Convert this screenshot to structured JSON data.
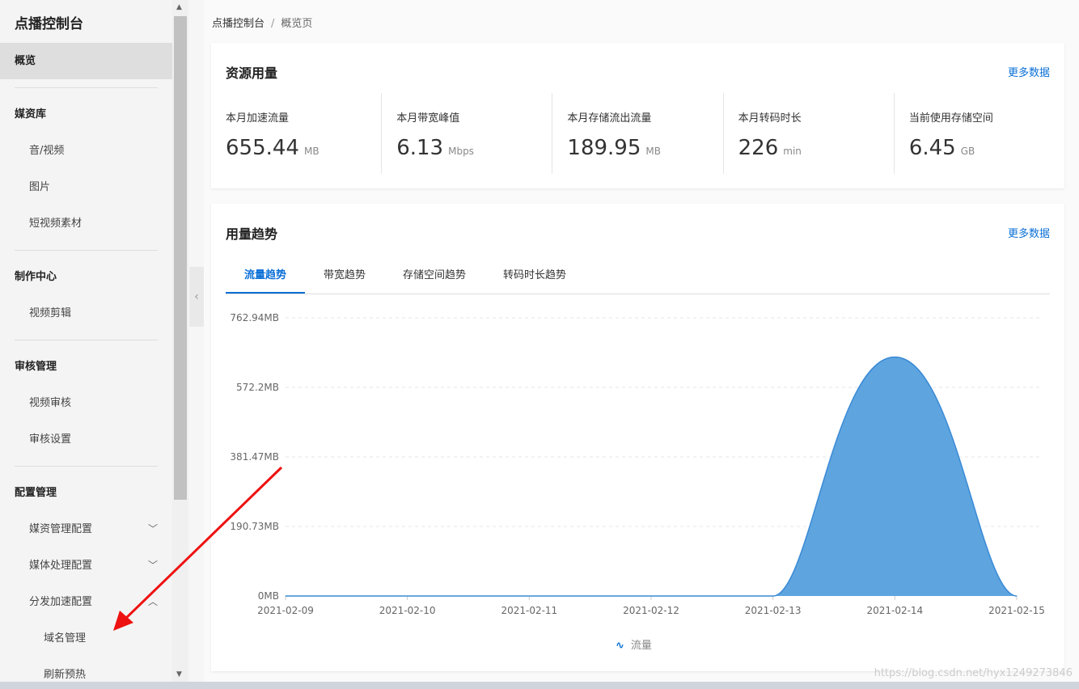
{
  "sidebar": {
    "title": "点播控制台",
    "items": [
      {
        "label": "概览",
        "level": 1,
        "active": true
      },
      {
        "divider": true
      },
      {
        "label": "媒资库",
        "level": 1
      },
      {
        "label": "音/视频",
        "level": 2
      },
      {
        "label": "图片",
        "level": 2
      },
      {
        "label": "短视频素材",
        "level": 2
      },
      {
        "divider": true
      },
      {
        "label": "制作中心",
        "level": 1
      },
      {
        "label": "视频剪辑",
        "level": 2
      },
      {
        "divider": true
      },
      {
        "label": "审核管理",
        "level": 1
      },
      {
        "label": "视频审核",
        "level": 2
      },
      {
        "label": "审核设置",
        "level": 2
      },
      {
        "divider": true
      },
      {
        "label": "配置管理",
        "level": 1
      },
      {
        "label": "媒资管理配置",
        "level": 2,
        "chevron": "chevron-down"
      },
      {
        "label": "媒体处理配置",
        "level": 2,
        "chevron": "chevron-down"
      },
      {
        "label": "分发加速配置",
        "level": 2,
        "chevron": "chevron-up"
      },
      {
        "label": "域名管理",
        "level": 3
      },
      {
        "label": "刷新预热",
        "level": 3
      }
    ]
  },
  "breadcrumb": {
    "root": "点播控制台",
    "sep": "/",
    "current": "概览页"
  },
  "usage": {
    "title": "资源用量",
    "more": "更多数据",
    "stats": [
      {
        "label": "本月加速流量",
        "value": "655.44",
        "unit": "MB"
      },
      {
        "label": "本月带宽峰值",
        "value": "6.13",
        "unit": "Mbps"
      },
      {
        "label": "本月存储流出流量",
        "value": "189.95",
        "unit": "MB"
      },
      {
        "label": "本月转码时长",
        "value": "226",
        "unit": "min"
      },
      {
        "label": "当前使用存储空间",
        "value": "6.45",
        "unit": "GB"
      }
    ]
  },
  "trend": {
    "title": "用量趋势",
    "more": "更多数据",
    "tabs": [
      "流量趋势",
      "带宽趋势",
      "存储空间趋势",
      "转码时长趋势"
    ],
    "active_tab": 0
  },
  "chart_data": {
    "type": "area",
    "categories": [
      "2021-02-09",
      "2021-02-10",
      "2021-02-11",
      "2021-02-12",
      "2021-02-13",
      "2021-02-14",
      "2021-02-15"
    ],
    "series": [
      {
        "name": "流量",
        "values": [
          0,
          0,
          0,
          0,
          0,
          655.44,
          0
        ]
      }
    ],
    "yticks": [
      "0MB",
      "190.73MB",
      "381.47MB",
      "572.2MB",
      "762.94MB"
    ],
    "ylim": [
      0,
      762.94
    ],
    "grid": true,
    "legend": "bottom",
    "color": "#5ea5df",
    "line_color": "#3a8ad6"
  },
  "watermark": "https://blog.csdn.net/hyx1249273846"
}
